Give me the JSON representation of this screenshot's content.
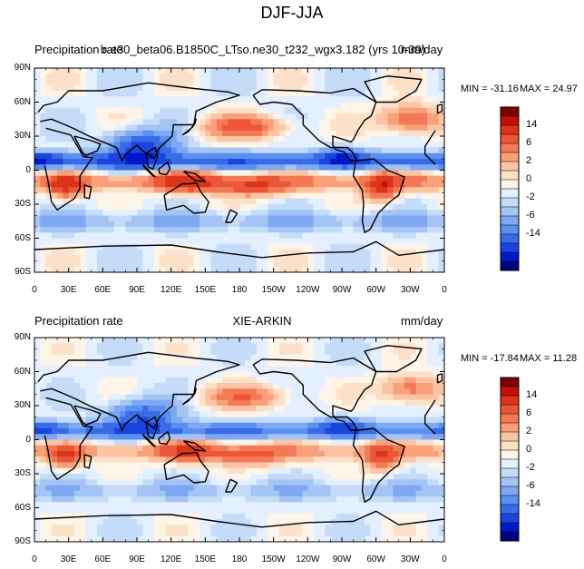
{
  "title": "DJF-JJA",
  "colors": {
    "levels": [
      "#000080",
      "#0019c8",
      "#1a44e0",
      "#3a6be6",
      "#5b8ff0",
      "#7ea9f2",
      "#a3c4f5",
      "#c5dcf9",
      "#e4efff",
      "#fff4e8",
      "#fde0c8",
      "#fcc4a2",
      "#f9a07a",
      "#f37a56",
      "#ea5636",
      "#dc3418",
      "#c01008",
      "#7f0000"
    ],
    "land": "#000000"
  },
  "panels": [
    {
      "left_label": "Precipitation rate",
      "center_label": "b.e30_beta06.B1850C_LTso.ne30_t232_wgx3.182 (yrs 10-39)",
      "right_label": "mm/day",
      "min_label": "MIN = -31.16",
      "max_label": "MAX =  24.97"
    },
    {
      "left_label": "Precipitation rate",
      "center_label": "XIE-ARKIN",
      "right_label": "mm/day",
      "min_label": "MIN = -17.84",
      "max_label": "MAX =  11.28"
    }
  ],
  "map": {
    "lat_ticks": [
      "90N",
      "60N",
      "30N",
      "0",
      "30S",
      "60S",
      "90S"
    ],
    "lon_ticks": [
      "0",
      "30E",
      "60E",
      "90E",
      "120E",
      "150E",
      "180",
      "150W",
      "120W",
      "90W",
      "60W",
      "30W",
      "0"
    ]
  },
  "colorbar": {
    "labels": [
      "14",
      "6",
      "2",
      "0",
      "-2",
      "-6",
      "-14"
    ]
  }
}
